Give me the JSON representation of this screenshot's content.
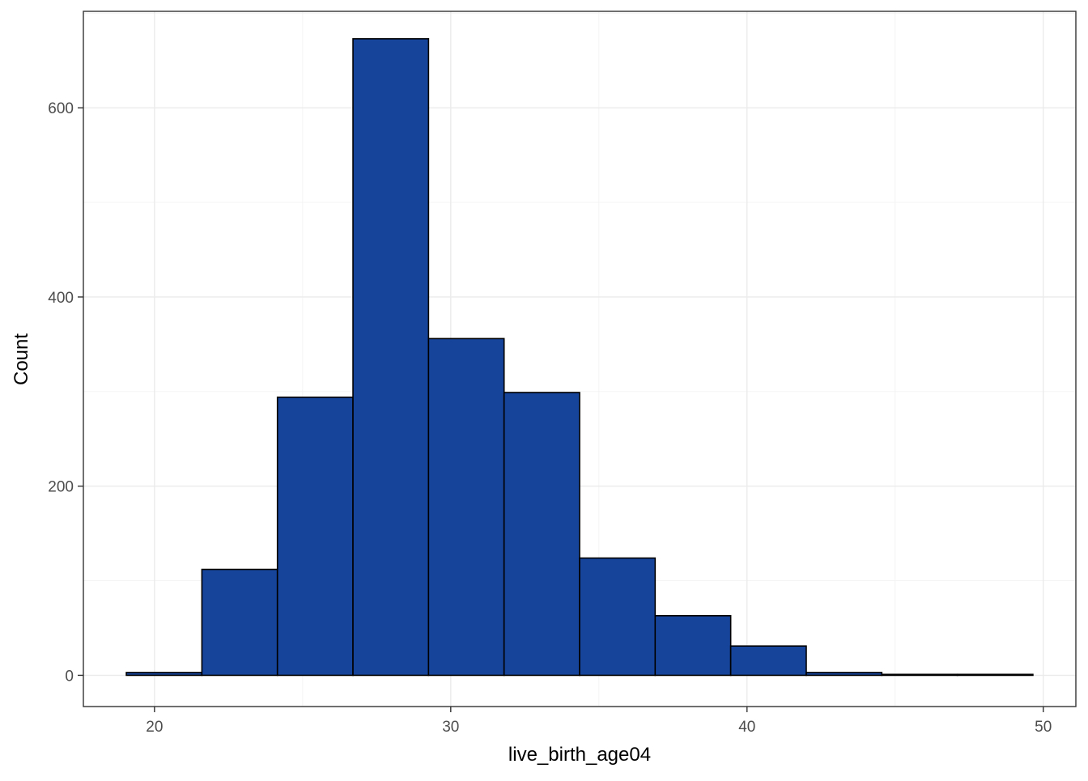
{
  "chart_data": {
    "type": "bar",
    "subtype": "histogram",
    "title": "",
    "xlabel": "live_birth_age04",
    "ylabel": "Count",
    "xlim": [
      17.6,
      51.1
    ],
    "ylim": [
      -33,
      702
    ],
    "x_ticks": [
      20,
      30,
      40,
      50
    ],
    "y_ticks": [
      0,
      200,
      400,
      600
    ],
    "grid": true,
    "bin_edges": [
      19.05,
      21.6,
      24.15,
      26.7,
      29.25,
      31.8,
      34.35,
      36.9,
      39.45,
      42.0,
      44.55,
      47.1,
      49.65
    ],
    "values": [
      3,
      112,
      294,
      673,
      356,
      299,
      124,
      63,
      31,
      3,
      1,
      1
    ],
    "bar_fill": "#17449b",
    "bar_outline": "#000000",
    "panel_background": "#ffffff",
    "grid_color": "#ebebeb"
  }
}
